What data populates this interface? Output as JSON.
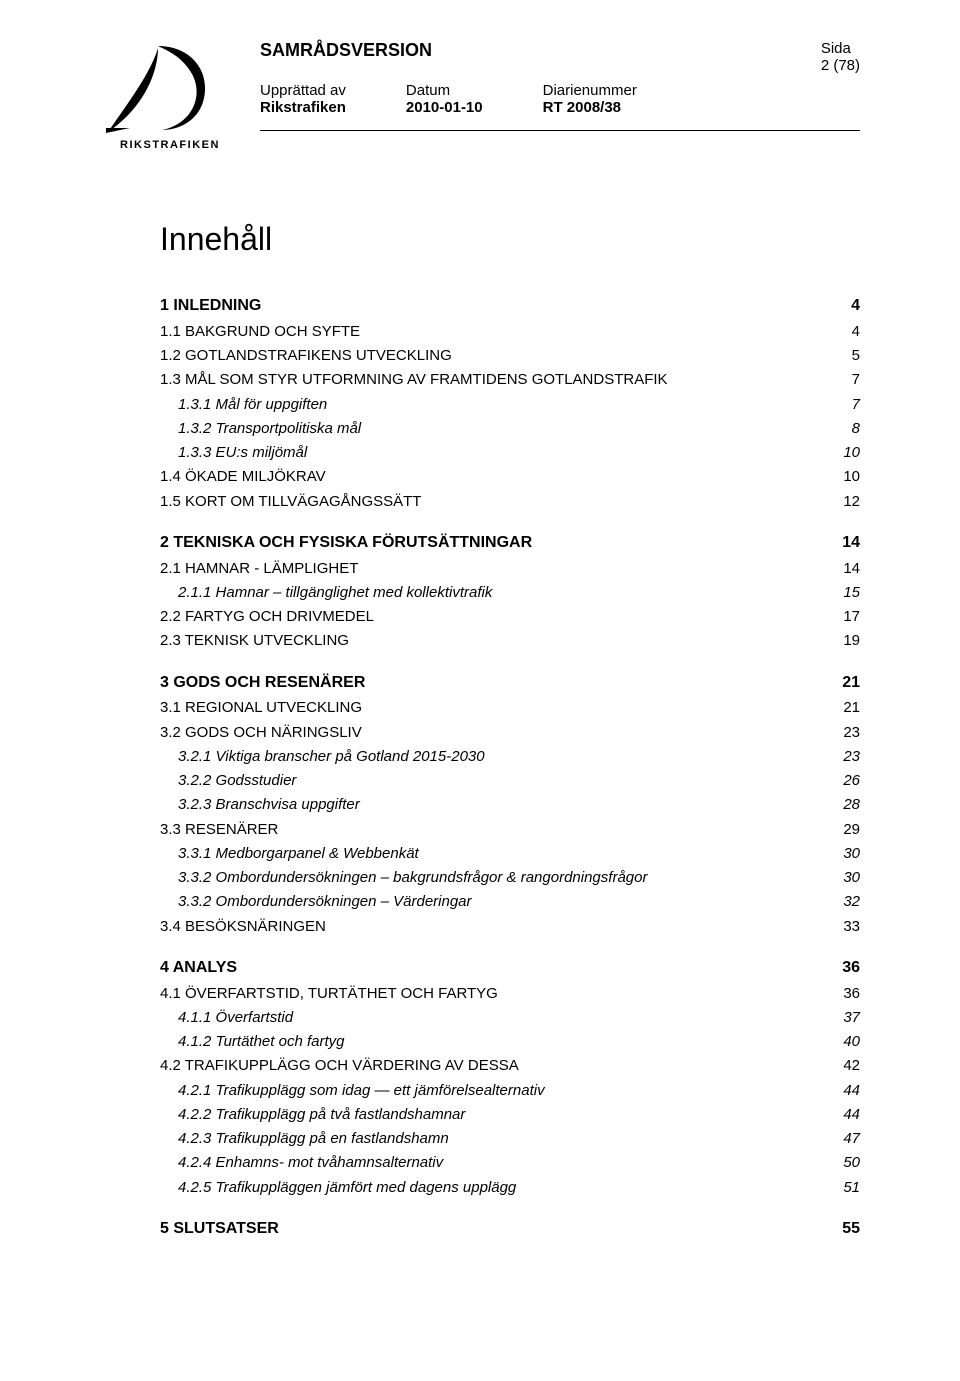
{
  "header": {
    "version_label": "SAMRÅDSVERSION",
    "sida_label": "Sida",
    "sida_value": "2 (78)",
    "col1_label": "Upprättad av",
    "col1_value": "Rikstrafiken",
    "col2_label": "Datum",
    "col2_value": "2010-01-10",
    "col3_label": "Diarienummer",
    "col3_value": "RT 2008/38",
    "logo_text": "RIKSTRAFIKEN"
  },
  "toc_title": "Innehåll",
  "toc": [
    {
      "level": 1,
      "label": "1 INLEDNING",
      "page": "4"
    },
    {
      "level": 2,
      "label": "1.1 BAKGRUND OCH SYFTE",
      "page": "4"
    },
    {
      "level": 2,
      "label": "1.2 GOTLANDSTRAFIKENS UTVECKLING",
      "page": "5"
    },
    {
      "level": 2,
      "label": "1.3 MÅL SOM STYR UTFORMNING AV FRAMTIDENS GOTLANDSTRAFIK",
      "page": "7"
    },
    {
      "level": 3,
      "label": "1.3.1 Mål för uppgiften",
      "page": "7"
    },
    {
      "level": 3,
      "label": "1.3.2 Transportpolitiska mål",
      "page": "8"
    },
    {
      "level": 3,
      "label": "1.3.3 EU:s miljömål",
      "page": "10"
    },
    {
      "level": 2,
      "label": "1.4 ÖKADE MILJÖKRAV",
      "page": "10"
    },
    {
      "level": 2,
      "label": "1.5 KORT OM TILLVÄGAGÅNGSSÄTT",
      "page": "12"
    },
    {
      "level": 1,
      "label": "2 TEKNISKA OCH FYSISKA FÖRUTSÄTTNINGAR",
      "page": "14"
    },
    {
      "level": 2,
      "label": "2.1 HAMNAR - LÄMPLIGHET",
      "page": "14"
    },
    {
      "level": 3,
      "label": "2.1.1 Hamnar – tillgänglighet med kollektivtrafik",
      "page": "15"
    },
    {
      "level": 2,
      "label": "2.2 FARTYG OCH DRIVMEDEL",
      "page": "17"
    },
    {
      "level": 2,
      "label": "2.3 TEKNISK UTVECKLING",
      "page": "19"
    },
    {
      "level": 1,
      "label": "3 GODS OCH RESENÄRER",
      "page": "21"
    },
    {
      "level": 2,
      "label": "3.1 REGIONAL UTVECKLING",
      "page": "21"
    },
    {
      "level": 2,
      "label": "3.2 GODS OCH NÄRINGSLIV",
      "page": "23"
    },
    {
      "level": 3,
      "label": "3.2.1 Viktiga branscher på Gotland 2015-2030",
      "page": "23"
    },
    {
      "level": 3,
      "label": "3.2.2 Godsstudier",
      "page": "26"
    },
    {
      "level": 3,
      "label": "3.2.3 Branschvisa uppgifter",
      "page": "28"
    },
    {
      "level": 2,
      "label": "3.3 RESENÄRER",
      "page": "29"
    },
    {
      "level": 3,
      "label": "3.3.1 Medborgarpanel & Webbenkät",
      "page": "30"
    },
    {
      "level": 3,
      "label": "3.3.2 Ombordundersökningen – bakgrundsfrågor & rangordningsfrågor",
      "page": "30"
    },
    {
      "level": 3,
      "label": "3.3.2 Ombordundersökningen – Värderingar",
      "page": "32"
    },
    {
      "level": 2,
      "label": "3.4 BESÖKSNÄRINGEN",
      "page": "33"
    },
    {
      "level": 1,
      "label": "4 ANALYS",
      "page": "36"
    },
    {
      "level": 2,
      "label": "4.1 ÖVERFARTSTID, TURTÄTHET OCH FARTYG",
      "page": "36"
    },
    {
      "level": 3,
      "label": "4.1.1 Överfartstid",
      "page": "37"
    },
    {
      "level": 3,
      "label": "4.1.2 Turtäthet och fartyg",
      "page": "40"
    },
    {
      "level": 2,
      "label": "4.2 TRAFIKUPPLÄGG OCH VÄRDERING AV DESSA",
      "page": "42"
    },
    {
      "level": 3,
      "label": "4.2.1 Trafikupplägg som idag — ett jämförelsealternativ",
      "page": "44"
    },
    {
      "level": 3,
      "label": "4.2.2 Trafikupplägg på två fastlandshamnar",
      "page": "44"
    },
    {
      "level": 3,
      "label": "4.2.3 Trafikupplägg på en fastlandshamn",
      "page": "47"
    },
    {
      "level": 3,
      "label": "4.2.4 Enhamns- mot tvåhamnsalternativ",
      "page": "50"
    },
    {
      "level": 3,
      "label": "4.2.5 Trafikuppläggen jämfört med dagens upplägg",
      "page": "51"
    },
    {
      "level": 1,
      "label": "5 SLUTSATSER",
      "page": "55"
    }
  ]
}
